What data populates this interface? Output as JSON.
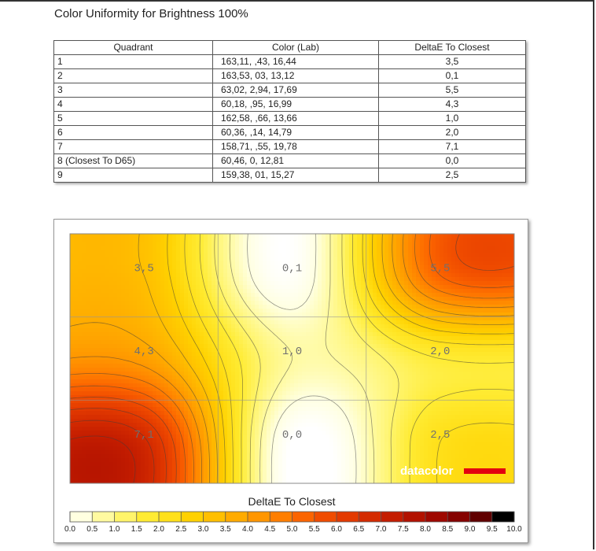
{
  "title": "Color Uniformity for Brightness 100%",
  "table": {
    "headers": [
      "Quadrant",
      "Color (Lab)",
      "DeltaE To Closest"
    ],
    "rows": [
      [
        "1",
        "163,11,   ,43,  16,44",
        "3,5"
      ],
      [
        "2",
        "163,53,    03,  13,12",
        "0,1"
      ],
      [
        "3",
        " 63,02,  2,94,  17,69",
        "5,5"
      ],
      [
        "4",
        " 60,18,   ,95,  16,99",
        "4,3"
      ],
      [
        "5",
        "162,58,   ,66,  13,66",
        "1,0"
      ],
      [
        "6",
        " 60,36,   ,14,  14,79",
        "2,0"
      ],
      [
        "7",
        "158,71,   ,55,  19,78",
        "7,1"
      ],
      [
        "8 (Closest To D65)",
        " 60,46,     0,  12,81",
        "0,0"
      ],
      [
        "9",
        "159,38,    01,  15,27",
        "2,5"
      ]
    ]
  },
  "chart_data": {
    "type": "heatmap",
    "grid_rows": 3,
    "grid_cols": 3,
    "values": [
      [
        3.5,
        0.1,
        5.5
      ],
      [
        4.3,
        1.0,
        2.0
      ],
      [
        7.1,
        0.0,
        2.5
      ]
    ],
    "cell_labels": [
      [
        "3,5",
        "0,1",
        "5,5"
      ],
      [
        "4,3",
        "1,0",
        "2,0"
      ],
      [
        "7,1",
        "0,0",
        "2,5"
      ]
    ],
    "scale_title": "DeltaE To Closest",
    "scale_ticks": [
      "0.0",
      "0.5",
      "1.0",
      "1.5",
      "2.0",
      "2.5",
      "3.0",
      "3.5",
      "4.0",
      "4.5",
      "5.0",
      "5.5",
      "6.0",
      "6.5",
      "7.0",
      "7.5",
      "8.0",
      "8.5",
      "9.0",
      "9.5",
      "10.0"
    ],
    "scale_range": [
      0,
      10
    ],
    "scale_colors": [
      "#ffffff",
      "#ffffe0",
      "#fffaa0",
      "#fff46a",
      "#ffeb33",
      "#ffe01a",
      "#ffd100",
      "#ffbf00",
      "#ffab00",
      "#ff9600",
      "#ff7e00",
      "#fb6400",
      "#f04c00",
      "#e33a00",
      "#d42b00",
      "#c41d00",
      "#b21200",
      "#9e0800",
      "#850200",
      "#600000",
      "#000000"
    ],
    "watermark": "datacolor",
    "grid": true
  }
}
